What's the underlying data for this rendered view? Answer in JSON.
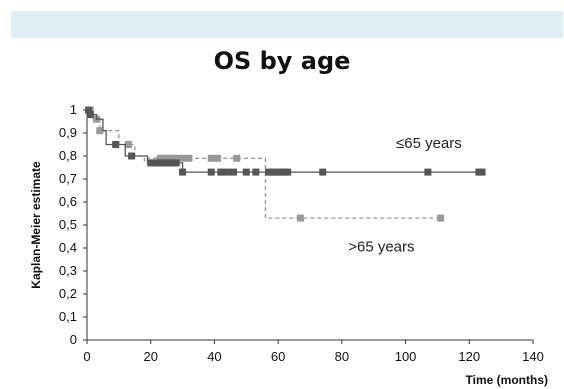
{
  "chart_data": {
    "type": "line",
    "title": "OS by age",
    "xlabel": "Time (months)",
    "ylabel": "Kaplan-Meier estimate",
    "xlim": [
      0,
      140
    ],
    "ylim": [
      0,
      1
    ],
    "xticks": [
      "0",
      "20",
      "40",
      "60",
      "80",
      "100",
      "120",
      "140"
    ],
    "yticks": [
      "0",
      "0,1",
      "0,2",
      "0,3",
      "0,4",
      "0,5",
      "0,6",
      "0,7",
      "0,8",
      "0,9",
      "1"
    ],
    "grid": false,
    "series": [
      {
        "name": "≤65 years",
        "color": "#555555",
        "line_style": "solid",
        "steps": [
          [
            0,
            1
          ],
          [
            1,
            0.98
          ],
          [
            3,
            0.96
          ],
          [
            5,
            0.91
          ],
          [
            6,
            0.85
          ],
          [
            9,
            0.85
          ],
          [
            12,
            0.8
          ],
          [
            16,
            0.8
          ],
          [
            19,
            0.77
          ],
          [
            20,
            0.77
          ],
          [
            30,
            0.73
          ],
          [
            124,
            0.73
          ]
        ],
        "censor_x": [
          0.5,
          1,
          9,
          14,
          20,
          21,
          22,
          23,
          24,
          25,
          26,
          27,
          28,
          30,
          39,
          42,
          44,
          46,
          50,
          53,
          57,
          58,
          59,
          60,
          61,
          62,
          63,
          74,
          107,
          123,
          124
        ],
        "label_x": 97,
        "label_y": 0.835
      },
      {
        "name": ">65 years",
        "color": "#999999",
        "line_style": "dashed",
        "steps": [
          [
            0,
            1
          ],
          [
            2,
            0.96
          ],
          [
            4,
            0.91
          ],
          [
            10,
            0.85
          ],
          [
            15,
            0.8
          ],
          [
            18,
            0.78
          ],
          [
            19,
            0.79
          ],
          [
            56,
            0.79
          ],
          [
            56,
            0.53
          ],
          [
            111,
            0.53
          ]
        ],
        "censor_x": [
          1,
          3,
          4,
          13,
          23,
          24,
          25,
          26,
          27,
          28,
          30,
          32,
          39,
          41,
          47,
          67,
          111
        ],
        "label_x": 82,
        "label_y": 0.385
      }
    ]
  }
}
